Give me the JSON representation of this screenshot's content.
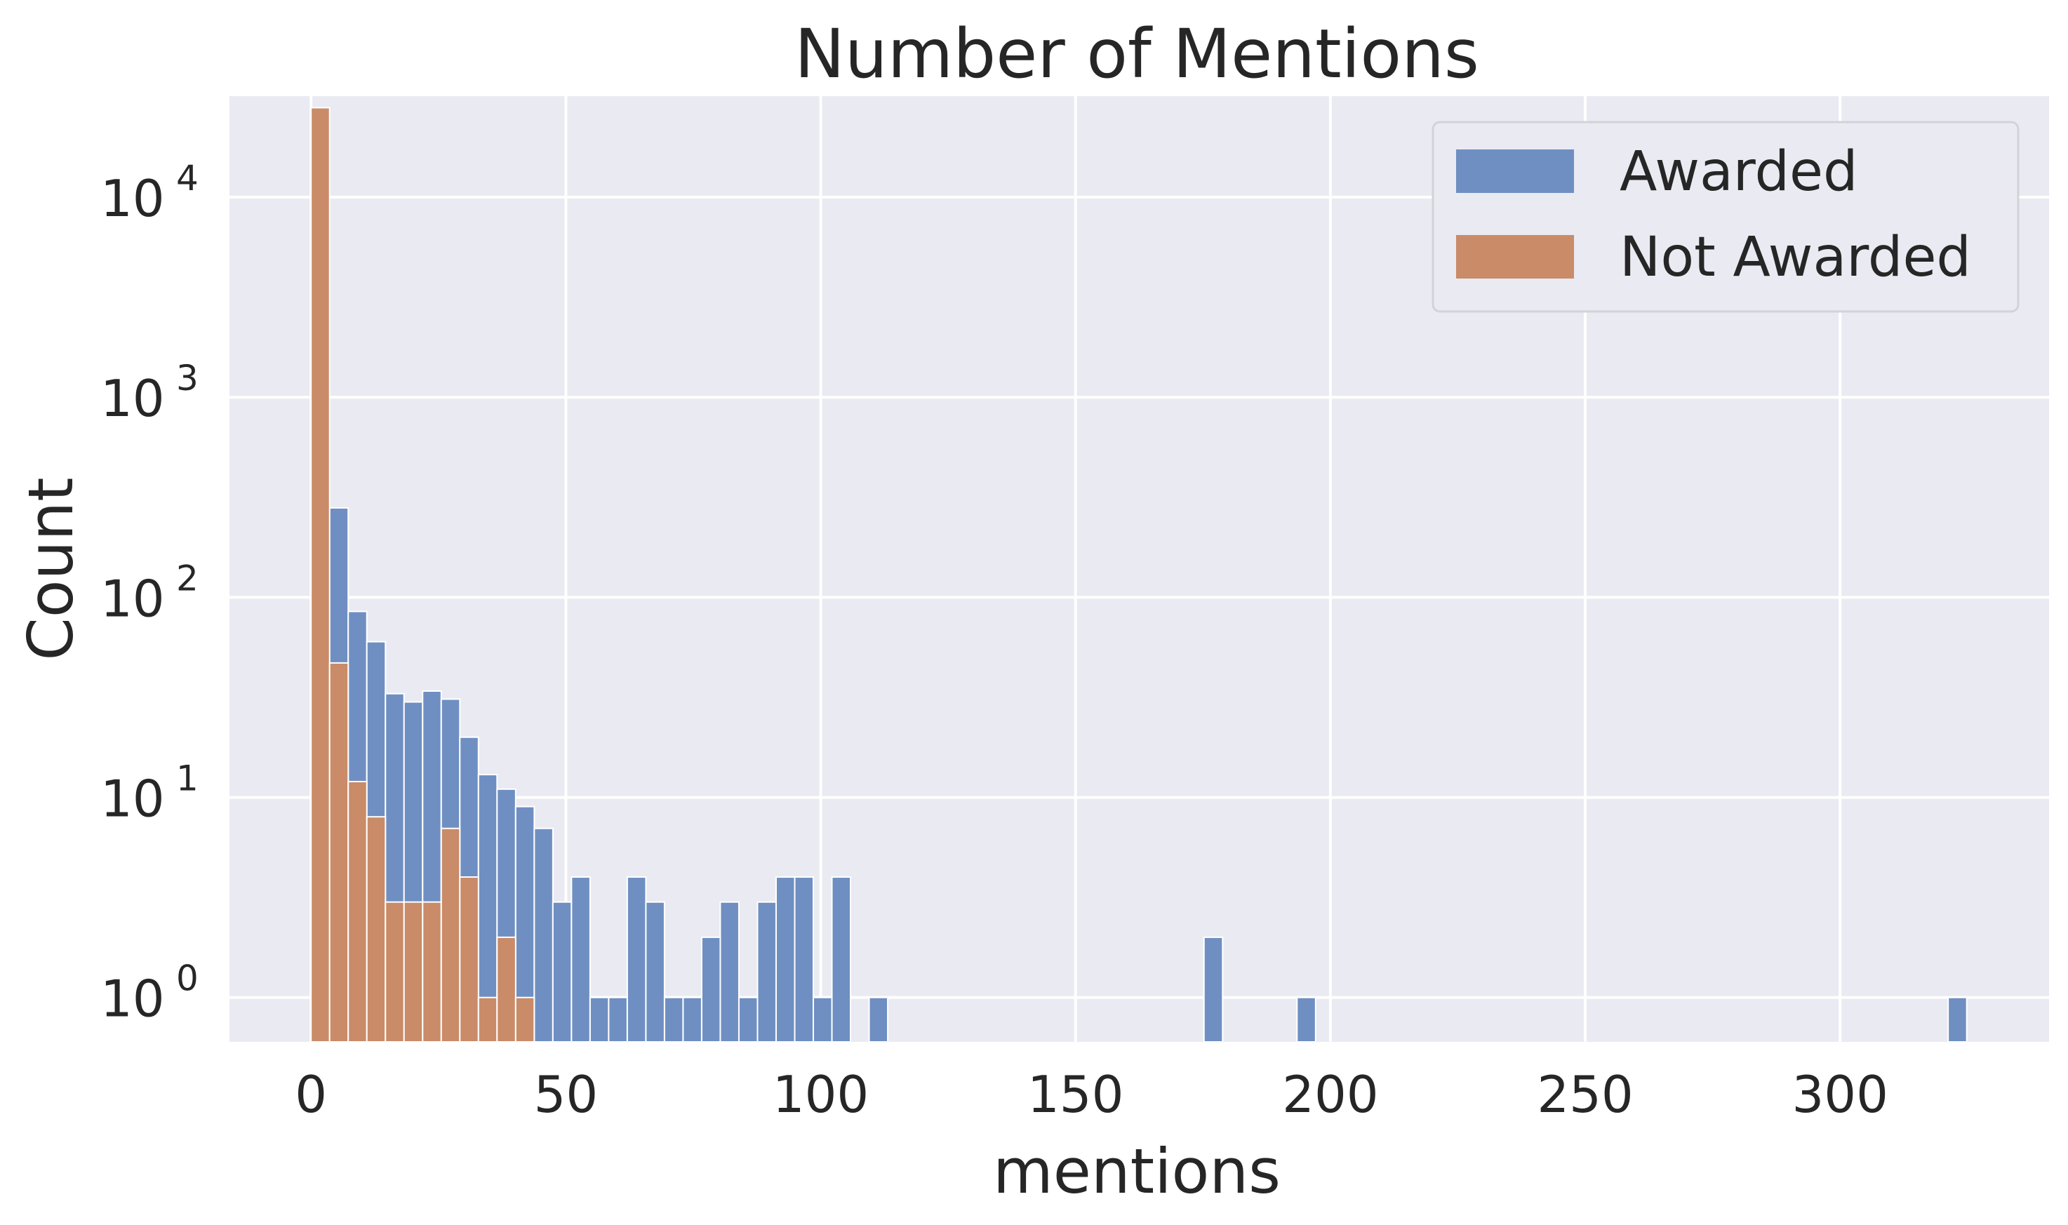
{
  "chart_data": {
    "type": "bar",
    "title": "Number of Mentions",
    "xlabel": "mentions",
    "ylabel": "Count",
    "yscale": "log",
    "ylim": [
      0.6,
      32000
    ],
    "xlim": [
      -16,
      341
    ],
    "grid": true,
    "legend_position": "top-right",
    "bin_width": 3.65,
    "x_ticks": [
      0,
      50,
      100,
      150,
      200,
      250,
      300
    ],
    "y_ticks": [
      {
        "value": 1,
        "base": "10",
        "exp": "0"
      },
      {
        "value": 10,
        "base": "10",
        "exp": "1"
      },
      {
        "value": 100,
        "base": "10",
        "exp": "2"
      },
      {
        "value": 1000,
        "base": "10",
        "exp": "3"
      },
      {
        "value": 10000,
        "base": "10",
        "exp": "4"
      }
    ],
    "series": [
      {
        "name": "Awarded",
        "color": "#6f8fc2",
        "bins": [
          {
            "x": 3.65,
            "count": 280
          },
          {
            "x": 7.3,
            "count": 85
          },
          {
            "x": 10.95,
            "count": 60
          },
          {
            "x": 14.6,
            "count": 33
          },
          {
            "x": 18.25,
            "count": 30
          },
          {
            "x": 21.9,
            "count": 34
          },
          {
            "x": 25.55,
            "count": 31
          },
          {
            "x": 29.2,
            "count": 20
          },
          {
            "x": 32.85,
            "count": 13
          },
          {
            "x": 36.5,
            "count": 11
          },
          {
            "x": 40.15,
            "count": 9
          },
          {
            "x": 43.8,
            "count": 7
          },
          {
            "x": 47.45,
            "count": 3
          },
          {
            "x": 51.1,
            "count": 4
          },
          {
            "x": 54.75,
            "count": 1
          },
          {
            "x": 58.4,
            "count": 1
          },
          {
            "x": 62.05,
            "count": 4
          },
          {
            "x": 65.7,
            "count": 3
          },
          {
            "x": 69.35,
            "count": 1
          },
          {
            "x": 73.0,
            "count": 1
          },
          {
            "x": 76.65,
            "count": 2
          },
          {
            "x": 80.3,
            "count": 3
          },
          {
            "x": 83.95,
            "count": 1
          },
          {
            "x": 87.6,
            "count": 3
          },
          {
            "x": 91.25,
            "count": 4
          },
          {
            "x": 94.9,
            "count": 4
          },
          {
            "x": 98.55,
            "count": 1
          },
          {
            "x": 102.2,
            "count": 4
          },
          {
            "x": 109.5,
            "count": 1
          },
          {
            "x": 175.2,
            "count": 2
          },
          {
            "x": 193.45,
            "count": 1
          },
          {
            "x": 321.2,
            "count": 1
          }
        ]
      },
      {
        "name": "Not Awarded",
        "color": "#c98b68",
        "bins": [
          {
            "x": 0,
            "count": 28000
          },
          {
            "x": 3.65,
            "count": 47
          },
          {
            "x": 7.3,
            "count": 12
          },
          {
            "x": 10.95,
            "count": 8
          },
          {
            "x": 14.6,
            "count": 3
          },
          {
            "x": 18.25,
            "count": 3
          },
          {
            "x": 21.9,
            "count": 3
          },
          {
            "x": 25.55,
            "count": 7
          },
          {
            "x": 29.2,
            "count": 4
          },
          {
            "x": 32.85,
            "count": 1
          },
          {
            "x": 36.5,
            "count": 2
          },
          {
            "x": 40.15,
            "count": 1
          }
        ]
      }
    ]
  }
}
